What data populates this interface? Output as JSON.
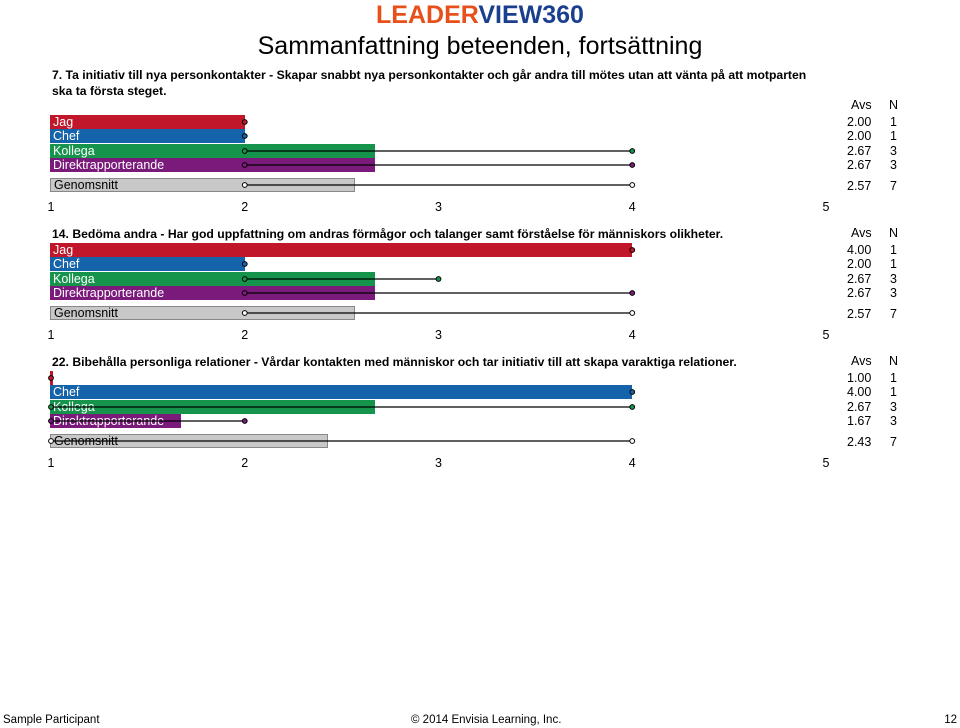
{
  "header": {
    "logo_part1": "LEADER",
    "logo_part2": "VIEW360",
    "subtitle": "Sammanfattning beteenden, fortsättning"
  },
  "colors": {
    "Jag": "#c0182a",
    "Chef": "#1563aa",
    "Kollega": "#17944c",
    "Direktrapporterande": "#7a1a7a",
    "Genomsnitt": "#c8c8c8"
  },
  "columns": {
    "avs": "Avs",
    "n": "N"
  },
  "axis_ticks": [
    "1",
    "2",
    "3",
    "4",
    "5"
  ],
  "chart_data": [
    {
      "type": "bar",
      "title": "7. Ta initiativ till nya personkontakter - Skapar snabbt nya personkontakter och går andra till mötes utan att vänta på att motparten ska ta första steget.",
      "xlim": [
        1,
        5
      ],
      "series": [
        {
          "name": "Jag",
          "avs": 2.0,
          "avs_text": "2.00",
          "n": "1",
          "max": 2
        },
        {
          "name": "Chef",
          "avs": 2.0,
          "avs_text": "2.00",
          "n": "1",
          "max": 2
        },
        {
          "name": "Kollega",
          "avs": 2.67,
          "avs_text": "2.67",
          "n": "3",
          "min": 2,
          "max": 4
        },
        {
          "name": "Direktrapporterande",
          "avs": 2.67,
          "avs_text": "2.67",
          "n": "3",
          "min": 2,
          "max": 4
        },
        {
          "name": "Genomsnitt",
          "avs": 2.57,
          "avs_text": "2.57",
          "n": "7",
          "min": 2,
          "max": 4
        }
      ]
    },
    {
      "type": "bar",
      "title": "14. Bedöma andra - Har god uppfattning om andras förmågor och talanger samt förståelse för människors olikheter.",
      "xlim": [
        1,
        5
      ],
      "series": [
        {
          "name": "Jag",
          "avs": 4.0,
          "avs_text": "4.00",
          "n": "1",
          "max": 4
        },
        {
          "name": "Chef",
          "avs": 2.0,
          "avs_text": "2.00",
          "n": "1",
          "max": 2
        },
        {
          "name": "Kollega",
          "avs": 2.67,
          "avs_text": "2.67",
          "n": "3",
          "min": 2,
          "max": 3
        },
        {
          "name": "Direktrapporterande",
          "avs": 2.67,
          "avs_text": "2.67",
          "n": "3",
          "min": 2,
          "max": 4
        },
        {
          "name": "Genomsnitt",
          "avs": 2.57,
          "avs_text": "2.57",
          "n": "7",
          "min": 2,
          "max": 4
        }
      ]
    },
    {
      "type": "bar",
      "title": "22. Bibehålla personliga relationer - Vårdar kontakten med människor och tar initiativ till att skapa varaktiga relationer.",
      "xlim": [
        1,
        5
      ],
      "series": [
        {
          "name": "Jag",
          "avs": 1.0,
          "avs_text": "1.00",
          "n": "1",
          "max": 1
        },
        {
          "name": "Chef",
          "avs": 4.0,
          "avs_text": "4.00",
          "n": "1",
          "max": 4
        },
        {
          "name": "Kollega",
          "avs": 2.67,
          "avs_text": "2.67",
          "n": "3",
          "min": 1,
          "max": 4
        },
        {
          "name": "Direktrapporterande",
          "avs": 1.67,
          "avs_text": "1.67",
          "n": "3",
          "min": 1,
          "max": 2
        },
        {
          "name": "Genomsnitt",
          "avs": 2.43,
          "avs_text": "2.43",
          "n": "7",
          "min": 1,
          "max": 4
        }
      ]
    }
  ],
  "footer": {
    "participant": "Sample Participant",
    "copyright": "© 2014 Envisia Learning, Inc.",
    "page_number": "12"
  }
}
